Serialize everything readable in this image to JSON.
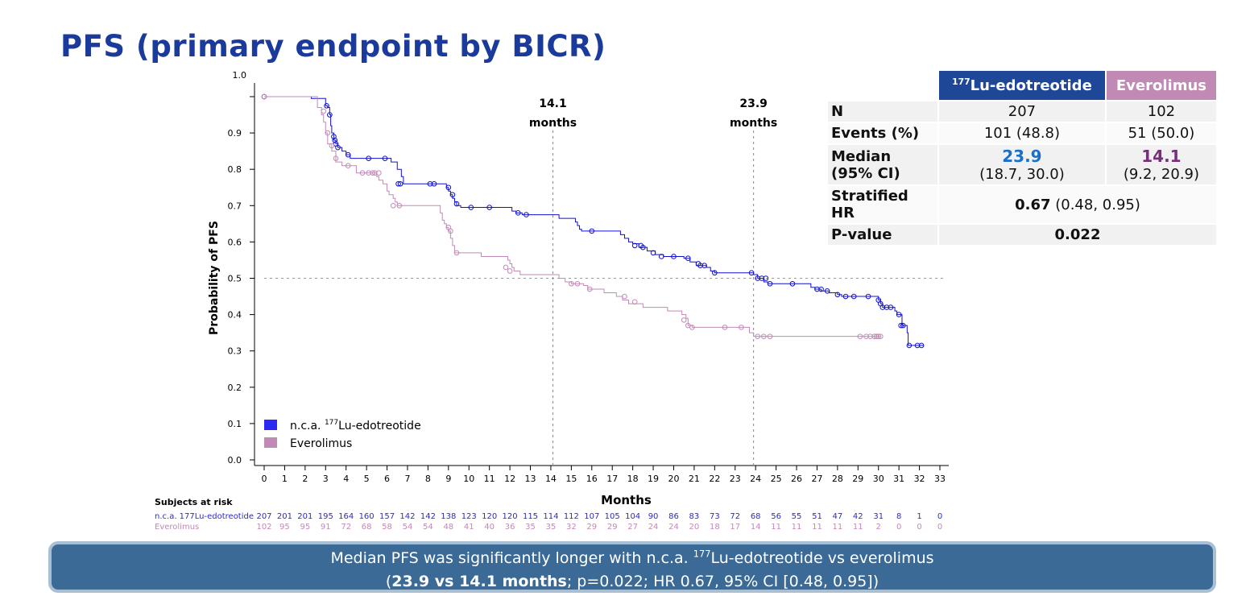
{
  "page": {
    "title": "PFS (primary endpoint by BICR)"
  },
  "colors": {
    "lu": "#1010d0",
    "ev": "#c08ab5",
    "lu_header": "#1f4797",
    "ev_header": "#c08ab5"
  },
  "chart_data": {
    "type": "line",
    "title": "",
    "xlabel": "Months",
    "ylabel": "Probability of PFS",
    "xlim": [
      0,
      33
    ],
    "ylim": [
      0,
      1.0
    ],
    "x_ticks": [
      0,
      1,
      2,
      3,
      4,
      5,
      6,
      7,
      8,
      9,
      10,
      11,
      12,
      13,
      14,
      15,
      16,
      17,
      18,
      19,
      20,
      21,
      22,
      23,
      24,
      25,
      26,
      27,
      28,
      29,
      30,
      31,
      32,
      33
    ],
    "y_ticks": [
      0.0,
      0.1,
      0.2,
      0.3,
      0.4,
      0.5,
      0.6,
      0.7,
      0.8,
      0.9,
      1.0
    ],
    "y_tick_labels": [
      "0.0",
      "0.1",
      "0.2",
      "0.3",
      "0.4",
      "0.5",
      "0.6",
      "0.7",
      "0.8",
      "0.9",
      "1.0"
    ],
    "annotations": [
      {
        "x": 14.1,
        "line1": "14.1",
        "line2": "months"
      },
      {
        "x": 23.9,
        "line1": "23.9",
        "line2": "months"
      }
    ],
    "reference_y": 0.5,
    "legend": {
      "position": "bottom-left",
      "entries": [
        {
          "prefix": "n.c.a. ",
          "sup": "177",
          "suffix": "Lu-edotreotide",
          "color": "#2a2af0"
        },
        {
          "prefix": "Everolimus",
          "sup": "",
          "suffix": "",
          "color": "#c08ab5"
        }
      ]
    },
    "series": [
      {
        "name": "n.c.a. 177Lu-edotreotide",
        "color": "#1010d0",
        "steps": [
          [
            0,
            1.0
          ],
          [
            2.3,
            1.0
          ],
          [
            2.3,
            0.995
          ],
          [
            3.0,
            0.995
          ],
          [
            3.0,
            0.975
          ],
          [
            3.1,
            0.97
          ],
          [
            3.2,
            0.95
          ],
          [
            3.25,
            0.92
          ],
          [
            3.3,
            0.9
          ],
          [
            3.4,
            0.88
          ],
          [
            3.5,
            0.87
          ],
          [
            3.6,
            0.86
          ],
          [
            3.8,
            0.85
          ],
          [
            4.0,
            0.84
          ],
          [
            4.2,
            0.83
          ],
          [
            6.0,
            0.83
          ],
          [
            6.2,
            0.82
          ],
          [
            6.5,
            0.8
          ],
          [
            6.7,
            0.78
          ],
          [
            6.8,
            0.76
          ],
          [
            8.8,
            0.76
          ],
          [
            8.9,
            0.75
          ],
          [
            9.0,
            0.74
          ],
          [
            9.1,
            0.73
          ],
          [
            9.2,
            0.72
          ],
          [
            9.3,
            0.71
          ],
          [
            9.4,
            0.7
          ],
          [
            9.6,
            0.695
          ],
          [
            12.0,
            0.695
          ],
          [
            12.1,
            0.685
          ],
          [
            12.3,
            0.68
          ],
          [
            12.6,
            0.675
          ],
          [
            14.2,
            0.675
          ],
          [
            14.4,
            0.665
          ],
          [
            15.1,
            0.665
          ],
          [
            15.2,
            0.655
          ],
          [
            15.3,
            0.645
          ],
          [
            15.4,
            0.635
          ],
          [
            15.5,
            0.63
          ],
          [
            17.3,
            0.63
          ],
          [
            17.4,
            0.62
          ],
          [
            17.6,
            0.61
          ],
          [
            17.8,
            0.6
          ],
          [
            18.0,
            0.595
          ],
          [
            18.3,
            0.585
          ],
          [
            18.7,
            0.575
          ],
          [
            19.1,
            0.565
          ],
          [
            19.5,
            0.56
          ],
          [
            20.3,
            0.56
          ],
          [
            20.5,
            0.555
          ],
          [
            20.8,
            0.545
          ],
          [
            21.1,
            0.535
          ],
          [
            21.6,
            0.53
          ],
          [
            21.8,
            0.52
          ],
          [
            22.0,
            0.515
          ],
          [
            23.8,
            0.515
          ],
          [
            23.9,
            0.51
          ],
          [
            24.1,
            0.5
          ],
          [
            24.4,
            0.49
          ],
          [
            24.6,
            0.485
          ],
          [
            26.5,
            0.485
          ],
          [
            26.7,
            0.475
          ],
          [
            26.9,
            0.47
          ],
          [
            27.2,
            0.465
          ],
          [
            27.6,
            0.46
          ],
          [
            28.0,
            0.455
          ],
          [
            28.2,
            0.45
          ],
          [
            29.9,
            0.45
          ],
          [
            30.0,
            0.44
          ],
          [
            30.1,
            0.43
          ],
          [
            30.2,
            0.42
          ],
          [
            30.7,
            0.42
          ],
          [
            30.8,
            0.41
          ],
          [
            30.9,
            0.4
          ],
          [
            31.1,
            0.4
          ],
          [
            31.15,
            0.37
          ],
          [
            31.3,
            0.37
          ],
          [
            31.4,
            0.35
          ],
          [
            31.45,
            0.315
          ],
          [
            32.2,
            0.315
          ]
        ],
        "censors": [
          [
            0,
            1.0
          ],
          [
            3.05,
            0.975
          ],
          [
            3.2,
            0.95
          ],
          [
            3.4,
            0.89
          ],
          [
            3.45,
            0.88
          ],
          [
            3.5,
            0.87
          ],
          [
            3.6,
            0.86
          ],
          [
            4.1,
            0.84
          ],
          [
            5.1,
            0.83
          ],
          [
            5.9,
            0.83
          ],
          [
            6.55,
            0.76
          ],
          [
            6.65,
            0.76
          ],
          [
            8.1,
            0.76
          ],
          [
            8.3,
            0.76
          ],
          [
            9.0,
            0.75
          ],
          [
            9.2,
            0.73
          ],
          [
            9.4,
            0.705
          ],
          [
            10.1,
            0.695
          ],
          [
            11.0,
            0.695
          ],
          [
            12.4,
            0.68
          ],
          [
            12.8,
            0.675
          ],
          [
            16.0,
            0.63
          ],
          [
            18.1,
            0.59
          ],
          [
            18.4,
            0.59
          ],
          [
            18.5,
            0.585
          ],
          [
            19.0,
            0.57
          ],
          [
            19.4,
            0.56
          ],
          [
            20.0,
            0.56
          ],
          [
            20.7,
            0.555
          ],
          [
            21.2,
            0.54
          ],
          [
            21.3,
            0.535
          ],
          [
            21.5,
            0.535
          ],
          [
            22.0,
            0.515
          ],
          [
            23.8,
            0.515
          ],
          [
            24.1,
            0.5
          ],
          [
            24.3,
            0.5
          ],
          [
            24.5,
            0.5
          ],
          [
            24.7,
            0.485
          ],
          [
            25.8,
            0.485
          ],
          [
            27.0,
            0.47
          ],
          [
            27.2,
            0.47
          ],
          [
            27.5,
            0.465
          ],
          [
            28.0,
            0.455
          ],
          [
            28.4,
            0.45
          ],
          [
            28.8,
            0.45
          ],
          [
            29.5,
            0.45
          ],
          [
            30.0,
            0.44
          ],
          [
            30.1,
            0.43
          ],
          [
            30.2,
            0.42
          ],
          [
            30.4,
            0.42
          ],
          [
            30.6,
            0.42
          ],
          [
            31.0,
            0.4
          ],
          [
            31.1,
            0.37
          ],
          [
            31.2,
            0.37
          ],
          [
            31.5,
            0.315
          ],
          [
            31.9,
            0.315
          ],
          [
            32.1,
            0.315
          ]
        ]
      },
      {
        "name": "Everolimus",
        "color": "#c08ab5",
        "steps": [
          [
            0,
            1.0
          ],
          [
            2.6,
            1.0
          ],
          [
            2.6,
            0.97
          ],
          [
            2.8,
            0.95
          ],
          [
            2.9,
            0.93
          ],
          [
            3.0,
            0.9
          ],
          [
            3.1,
            0.87
          ],
          [
            3.3,
            0.85
          ],
          [
            3.5,
            0.82
          ],
          [
            3.8,
            0.81
          ],
          [
            4.4,
            0.81
          ],
          [
            4.5,
            0.79
          ],
          [
            5.3,
            0.79
          ],
          [
            5.5,
            0.78
          ],
          [
            5.6,
            0.77
          ],
          [
            5.8,
            0.76
          ],
          [
            6.0,
            0.74
          ],
          [
            6.1,
            0.73
          ],
          [
            6.3,
            0.72
          ],
          [
            6.4,
            0.71
          ],
          [
            6.5,
            0.7
          ],
          [
            8.5,
            0.7
          ],
          [
            8.6,
            0.68
          ],
          [
            8.7,
            0.66
          ],
          [
            8.8,
            0.65
          ],
          [
            8.9,
            0.64
          ],
          [
            9.0,
            0.63
          ],
          [
            9.1,
            0.61
          ],
          [
            9.2,
            0.59
          ],
          [
            9.3,
            0.57
          ],
          [
            10.5,
            0.57
          ],
          [
            10.6,
            0.56
          ],
          [
            11.8,
            0.56
          ],
          [
            11.9,
            0.55
          ],
          [
            12.0,
            0.54
          ],
          [
            12.1,
            0.53
          ],
          [
            12.2,
            0.52
          ],
          [
            12.5,
            0.51
          ],
          [
            14.3,
            0.51
          ],
          [
            14.4,
            0.5
          ],
          [
            14.7,
            0.49
          ],
          [
            15.0,
            0.485
          ],
          [
            15.6,
            0.48
          ],
          [
            15.8,
            0.47
          ],
          [
            16.5,
            0.47
          ],
          [
            16.6,
            0.46
          ],
          [
            17.2,
            0.45
          ],
          [
            17.5,
            0.44
          ],
          [
            17.8,
            0.43
          ],
          [
            18.5,
            0.42
          ],
          [
            19.5,
            0.42
          ],
          [
            19.7,
            0.41
          ],
          [
            20.3,
            0.41
          ],
          [
            20.4,
            0.4
          ],
          [
            20.6,
            0.39
          ],
          [
            20.7,
            0.37
          ],
          [
            20.9,
            0.365
          ],
          [
            23.6,
            0.365
          ],
          [
            23.7,
            0.35
          ],
          [
            23.9,
            0.34
          ],
          [
            30.1,
            0.34
          ]
        ],
        "censors": [
          [
            0,
            1.0
          ],
          [
            2.9,
            0.96
          ],
          [
            3.1,
            0.9
          ],
          [
            3.3,
            0.865
          ],
          [
            3.5,
            0.83
          ],
          [
            4.1,
            0.81
          ],
          [
            4.8,
            0.79
          ],
          [
            5.1,
            0.79
          ],
          [
            5.3,
            0.79
          ],
          [
            5.4,
            0.79
          ],
          [
            5.6,
            0.79
          ],
          [
            6.3,
            0.7
          ],
          [
            6.6,
            0.7
          ],
          [
            9.0,
            0.64
          ],
          [
            9.1,
            0.63
          ],
          [
            9.4,
            0.57
          ],
          [
            11.8,
            0.53
          ],
          [
            12.0,
            0.52
          ],
          [
            15.0,
            0.485
          ],
          [
            15.3,
            0.485
          ],
          [
            15.9,
            0.47
          ],
          [
            17.6,
            0.45
          ],
          [
            18.1,
            0.435
          ],
          [
            20.5,
            0.385
          ],
          [
            20.7,
            0.37
          ],
          [
            20.9,
            0.365
          ],
          [
            22.5,
            0.365
          ],
          [
            23.3,
            0.365
          ],
          [
            24.1,
            0.34
          ],
          [
            24.4,
            0.34
          ],
          [
            24.7,
            0.34
          ],
          [
            29.1,
            0.34
          ],
          [
            29.4,
            0.34
          ],
          [
            29.6,
            0.34
          ],
          [
            29.8,
            0.34
          ],
          [
            29.9,
            0.34
          ],
          [
            30.0,
            0.34
          ],
          [
            30.1,
            0.34
          ]
        ]
      }
    ],
    "risk_table": {
      "title": "Subjects at risk",
      "rows": [
        {
          "label": "n.c.a. 177Lu-edotreotide",
          "color": "#2a2ad0",
          "values": [
            207,
            201,
            201,
            195,
            164,
            160,
            157,
            142,
            142,
            138,
            123,
            120,
            120,
            115,
            114,
            112,
            107,
            105,
            104,
            90,
            86,
            83,
            73,
            72,
            68,
            56,
            55,
            51,
            47,
            42,
            31,
            8,
            1,
            0
          ]
        },
        {
          "label": "Everolimus",
          "color": "#c08ab5",
          "values": [
            102,
            95,
            95,
            91,
            72,
            68,
            58,
            54,
            54,
            48,
            41,
            40,
            36,
            35,
            35,
            32,
            29,
            29,
            27,
            24,
            24,
            20,
            18,
            17,
            14,
            11,
            11,
            11,
            11,
            11,
            2,
            0,
            0,
            0
          ]
        }
      ]
    }
  },
  "stats_table": {
    "col_lu_sup": "177",
    "col_lu": "Lu-edotreotide",
    "col_ev": "Everolimus",
    "n_label": "N",
    "n_lu": "207",
    "n_ev": "102",
    "events_label": "Events (%)",
    "events_lu": "101 (48.8)",
    "events_ev": "51 (50.0)",
    "median_label_1": "Median",
    "median_label_2": "(95% CI)",
    "median_lu": "23.9",
    "ci_lu": "(18.7, 30.0)",
    "median_ev": "14.1",
    "ci_ev": "(9.2, 20.9)",
    "hr_label": "Stratified HR",
    "hr_value": "0.67",
    "hr_ci": " (0.48, 0.95)",
    "p_label": "P-value",
    "p_value": "0.022"
  },
  "banner": {
    "line1_a": "Median PFS was significantly longer with n.c.a. ",
    "line1_sup": "177",
    "line1_b": "Lu-edotreotide vs everolimus",
    "line2_open": "(",
    "line2_bold": "23.9 vs 14.1 months",
    "line2_rest": "; p=0.022; HR 0.67, 95% CI [0.48, 0.95])"
  }
}
